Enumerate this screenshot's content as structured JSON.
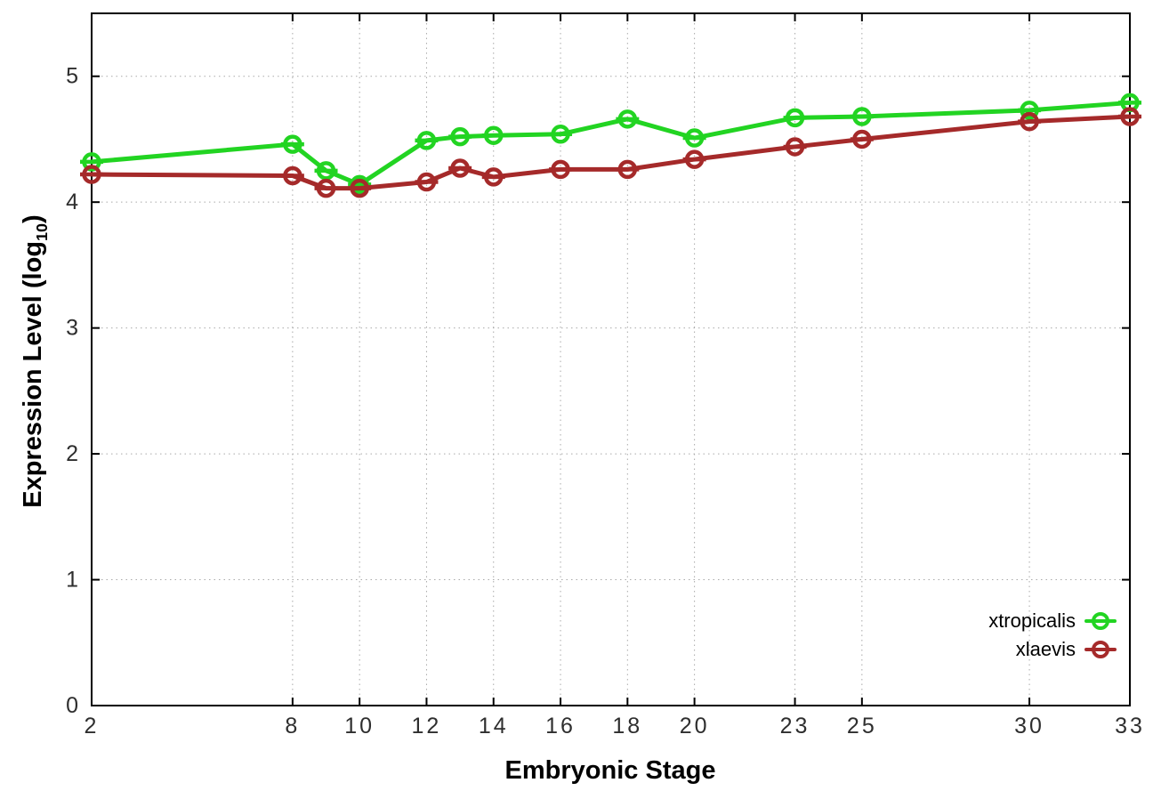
{
  "chart_data": {
    "type": "line",
    "title": "",
    "xlabel": "Embryonic Stage",
    "ylabel_main": "Expression Level (log",
    "ylabel_sub": "10",
    "ylabel_end": ")",
    "x": [
      2,
      8,
      9,
      10,
      12,
      13,
      14,
      16,
      18,
      20,
      23,
      25,
      30,
      33
    ],
    "xtick_values": [
      2,
      8,
      10,
      12,
      14,
      16,
      18,
      20,
      23,
      25,
      30,
      33
    ],
    "xtick_labels": [
      "2",
      "8",
      "10",
      "12",
      "14",
      "16",
      "18",
      "20",
      "23",
      "25",
      "30",
      "33"
    ],
    "yticks": [
      0,
      1,
      2,
      3,
      4,
      5
    ],
    "ytick_labels": [
      "0",
      "1",
      "2",
      "3",
      "4",
      "5"
    ],
    "xlim": [
      2,
      33
    ],
    "ylim": [
      0,
      5.5
    ],
    "grid": true,
    "legend_position": "inside-bottom-right",
    "marker": "open-circle-with-errorbar-cap",
    "series": [
      {
        "name": "xtropicalis",
        "color": "#22d422",
        "values": [
          4.32,
          4.46,
          4.25,
          4.14,
          4.49,
          4.52,
          4.53,
          4.54,
          4.66,
          4.51,
          4.67,
          4.68,
          4.73,
          4.79
        ]
      },
      {
        "name": "xlaevis",
        "color": "#a52a2a",
        "values": [
          4.22,
          4.21,
          4.11,
          4.11,
          4.16,
          4.27,
          4.2,
          4.26,
          4.26,
          4.34,
          4.44,
          4.5,
          4.64,
          4.68
        ]
      }
    ]
  },
  "style_colors": {
    "grid": "#a9a9a9",
    "axis": "#000000",
    "tick_label": "#2e2e2e"
  }
}
